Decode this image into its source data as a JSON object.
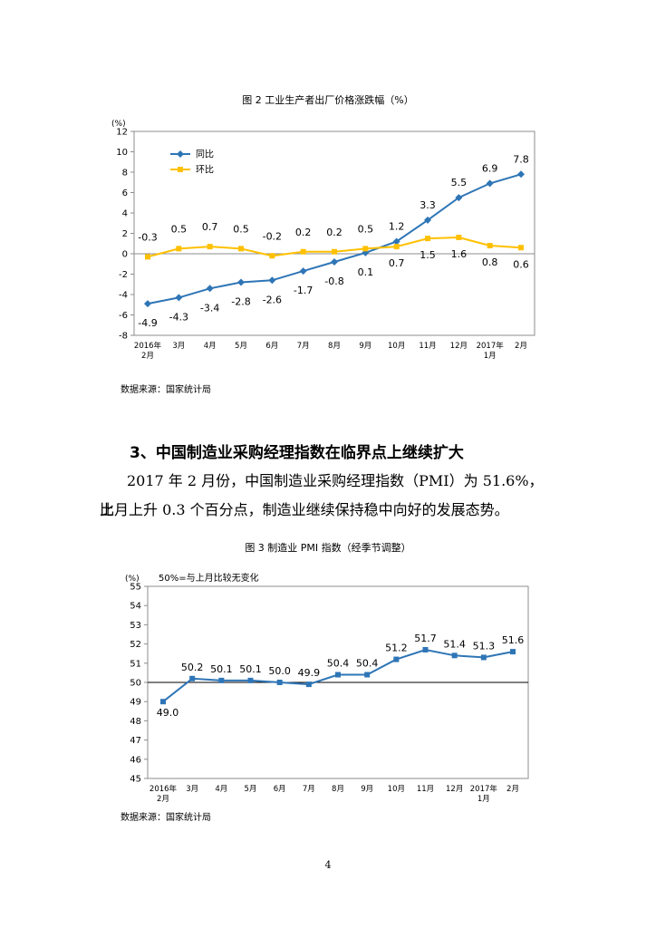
{
  "page": {
    "figure2_title": "图 2  工业生产者出厂价格涨跌幅（%）",
    "figure2_source": "数据来源：国家统计局",
    "section_heading": "3、中国制造业采购经理指数在临界点上继续扩大",
    "paragraph_line1": "2017 年 2 月份，中国制造业采购经理指数（PMI）为 51.6%，比",
    "paragraph_line2": "上月上升 0.3 个百分点，制造业继续保持稳中向好的发展态势。",
    "figure3_title": "图 3  制造业 PMI 指数（经季节调整）",
    "figure3_source": "数据来源：国家统计局",
    "page_number": "4"
  },
  "chart_data": [
    {
      "type": "line",
      "title": "图 2  工业生产者出厂价格涨跌幅（%）",
      "unit_label": "(%)",
      "categories": [
        "2016年\n2月",
        "3月",
        "4月",
        "5月",
        "6月",
        "7月",
        "8月",
        "9月",
        "10月",
        "11月",
        "12月",
        "2017年\n1月",
        "2月"
      ],
      "ylim": [
        -8,
        12
      ],
      "yticks": [
        -8,
        -6,
        -4,
        -2,
        0,
        2,
        4,
        6,
        8,
        10,
        12
      ],
      "grid": false,
      "legend_position": "top-left",
      "series": [
        {
          "name": "同比",
          "color": "#2e75b6",
          "marker": "diamond",
          "label_position": "mixed",
          "values": [
            -4.9,
            -4.3,
            -3.4,
            -2.8,
            -2.6,
            -1.7,
            -0.8,
            0.1,
            1.2,
            3.3,
            5.5,
            6.9,
            7.8
          ]
        },
        {
          "name": "环比",
          "color": "#ffc000",
          "marker": "square",
          "label_position": "mixed",
          "values": [
            -0.3,
            0.5,
            0.7,
            0.5,
            -0.2,
            0.2,
            0.2,
            0.5,
            0.7,
            1.5,
            1.6,
            0.8,
            0.6
          ]
        }
      ]
    },
    {
      "type": "line",
      "title": "图 3  制造业 PMI 指数（经季节调整）",
      "unit_label": "(%)",
      "annotation": "50%=与上月比较无变化",
      "categories": [
        "2016年\n2月",
        "3月",
        "4月",
        "5月",
        "6月",
        "7月",
        "8月",
        "9月",
        "10月",
        "11月",
        "12月",
        "2017年\n1月",
        "2月"
      ],
      "ylim": [
        45,
        55
      ],
      "yticks": [
        45,
        46,
        47,
        48,
        49,
        50,
        51,
        52,
        53,
        54,
        55
      ],
      "reference_line": 50,
      "grid": false,
      "series": [
        {
          "name": "PMI",
          "color": "#2e75b6",
          "marker": "square",
          "values": [
            49.0,
            50.2,
            50.1,
            50.1,
            50.0,
            49.9,
            50.4,
            50.4,
            51.2,
            51.7,
            51.4,
            51.3,
            51.6
          ]
        }
      ]
    }
  ]
}
